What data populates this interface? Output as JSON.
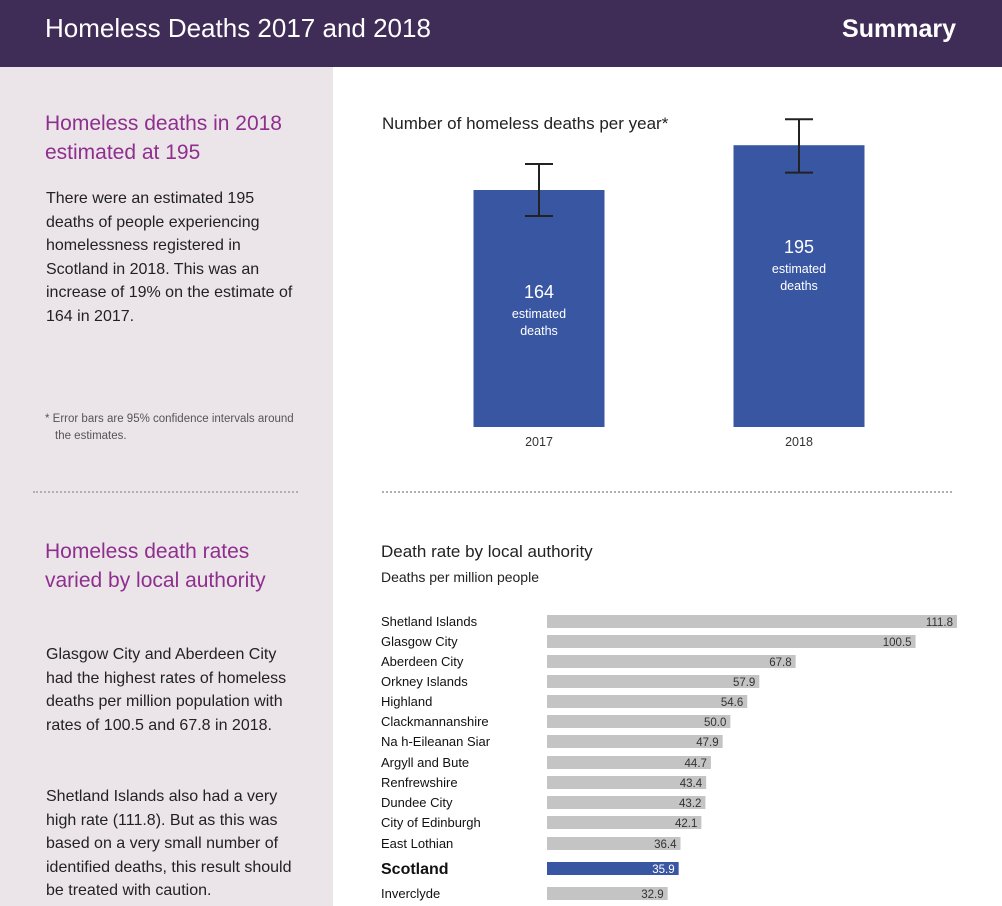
{
  "header": {
    "title": "Homeless Deaths 2017 and 2018",
    "summary": "Summary"
  },
  "sidebar": {
    "section1": {
      "heading": "Homeless deaths in 2018 estimated at 195",
      "text": "There were an estimated 195 deaths of people experiencing homelessness registered in Scotland in 2018. This was an increase of 19% on the estimate of 164 in 2017.",
      "note": "* Error bars are 95% confidence intervals around the estimates."
    },
    "section2": {
      "heading": "Homeless death rates varied by local authority",
      "text1": "Glasgow City and Aberdeen City had the highest rates of homeless deaths per million population with rates of 100.5 and 67.8 in 2018.",
      "text2": "Shetland Islands also had a very high rate (111.8). But as this was based on a very small number of identified deaths, this result should be treated with caution."
    }
  },
  "colors": {
    "header_bg": "#3f2c57",
    "sidebar_bg": "#ebe5ea",
    "accent": "#8e2f8d",
    "bar_blue": "#3956a3",
    "bar_grey": "#c4c4c4"
  },
  "chart_data": [
    {
      "type": "bar",
      "title": "Number of homeless deaths per year*",
      "categories": [
        "2017",
        "2018"
      ],
      "values": [
        164,
        195
      ],
      "error_bars": [
        [
          146,
          182
        ],
        [
          176,
          213
        ]
      ],
      "value_label": "estimated deaths",
      "ylim": [
        0,
        220
      ],
      "grid": false
    },
    {
      "type": "bar",
      "orientation": "horizontal",
      "title": "Death rate by local authority",
      "subtitle": "Deaths per million people",
      "categories": [
        "Shetland Islands",
        "Glasgow City",
        "Aberdeen City",
        "Orkney Islands",
        "Highland",
        "Clackmannanshire",
        "Na h-Eileanan Siar",
        "Argyll and Bute",
        "Renfrewshire",
        "Dundee City",
        "City of Edinburgh",
        "East Lothian",
        "Scotland",
        "Inverclyde"
      ],
      "values": [
        111.8,
        100.5,
        67.8,
        57.9,
        54.6,
        50.0,
        47.9,
        44.7,
        43.4,
        43.2,
        42.1,
        36.4,
        35.9,
        32.9
      ],
      "value_labels": [
        "111.8",
        "100.5",
        "67.8",
        "57.9",
        "54.6",
        "50.0",
        "47.9",
        "44.7",
        "43.4",
        "43.2",
        "42.1",
        "36.4",
        "35.9",
        "32.9"
      ],
      "highlight": "Scotland",
      "xlim": [
        0,
        111.8
      ],
      "grid": false
    }
  ]
}
